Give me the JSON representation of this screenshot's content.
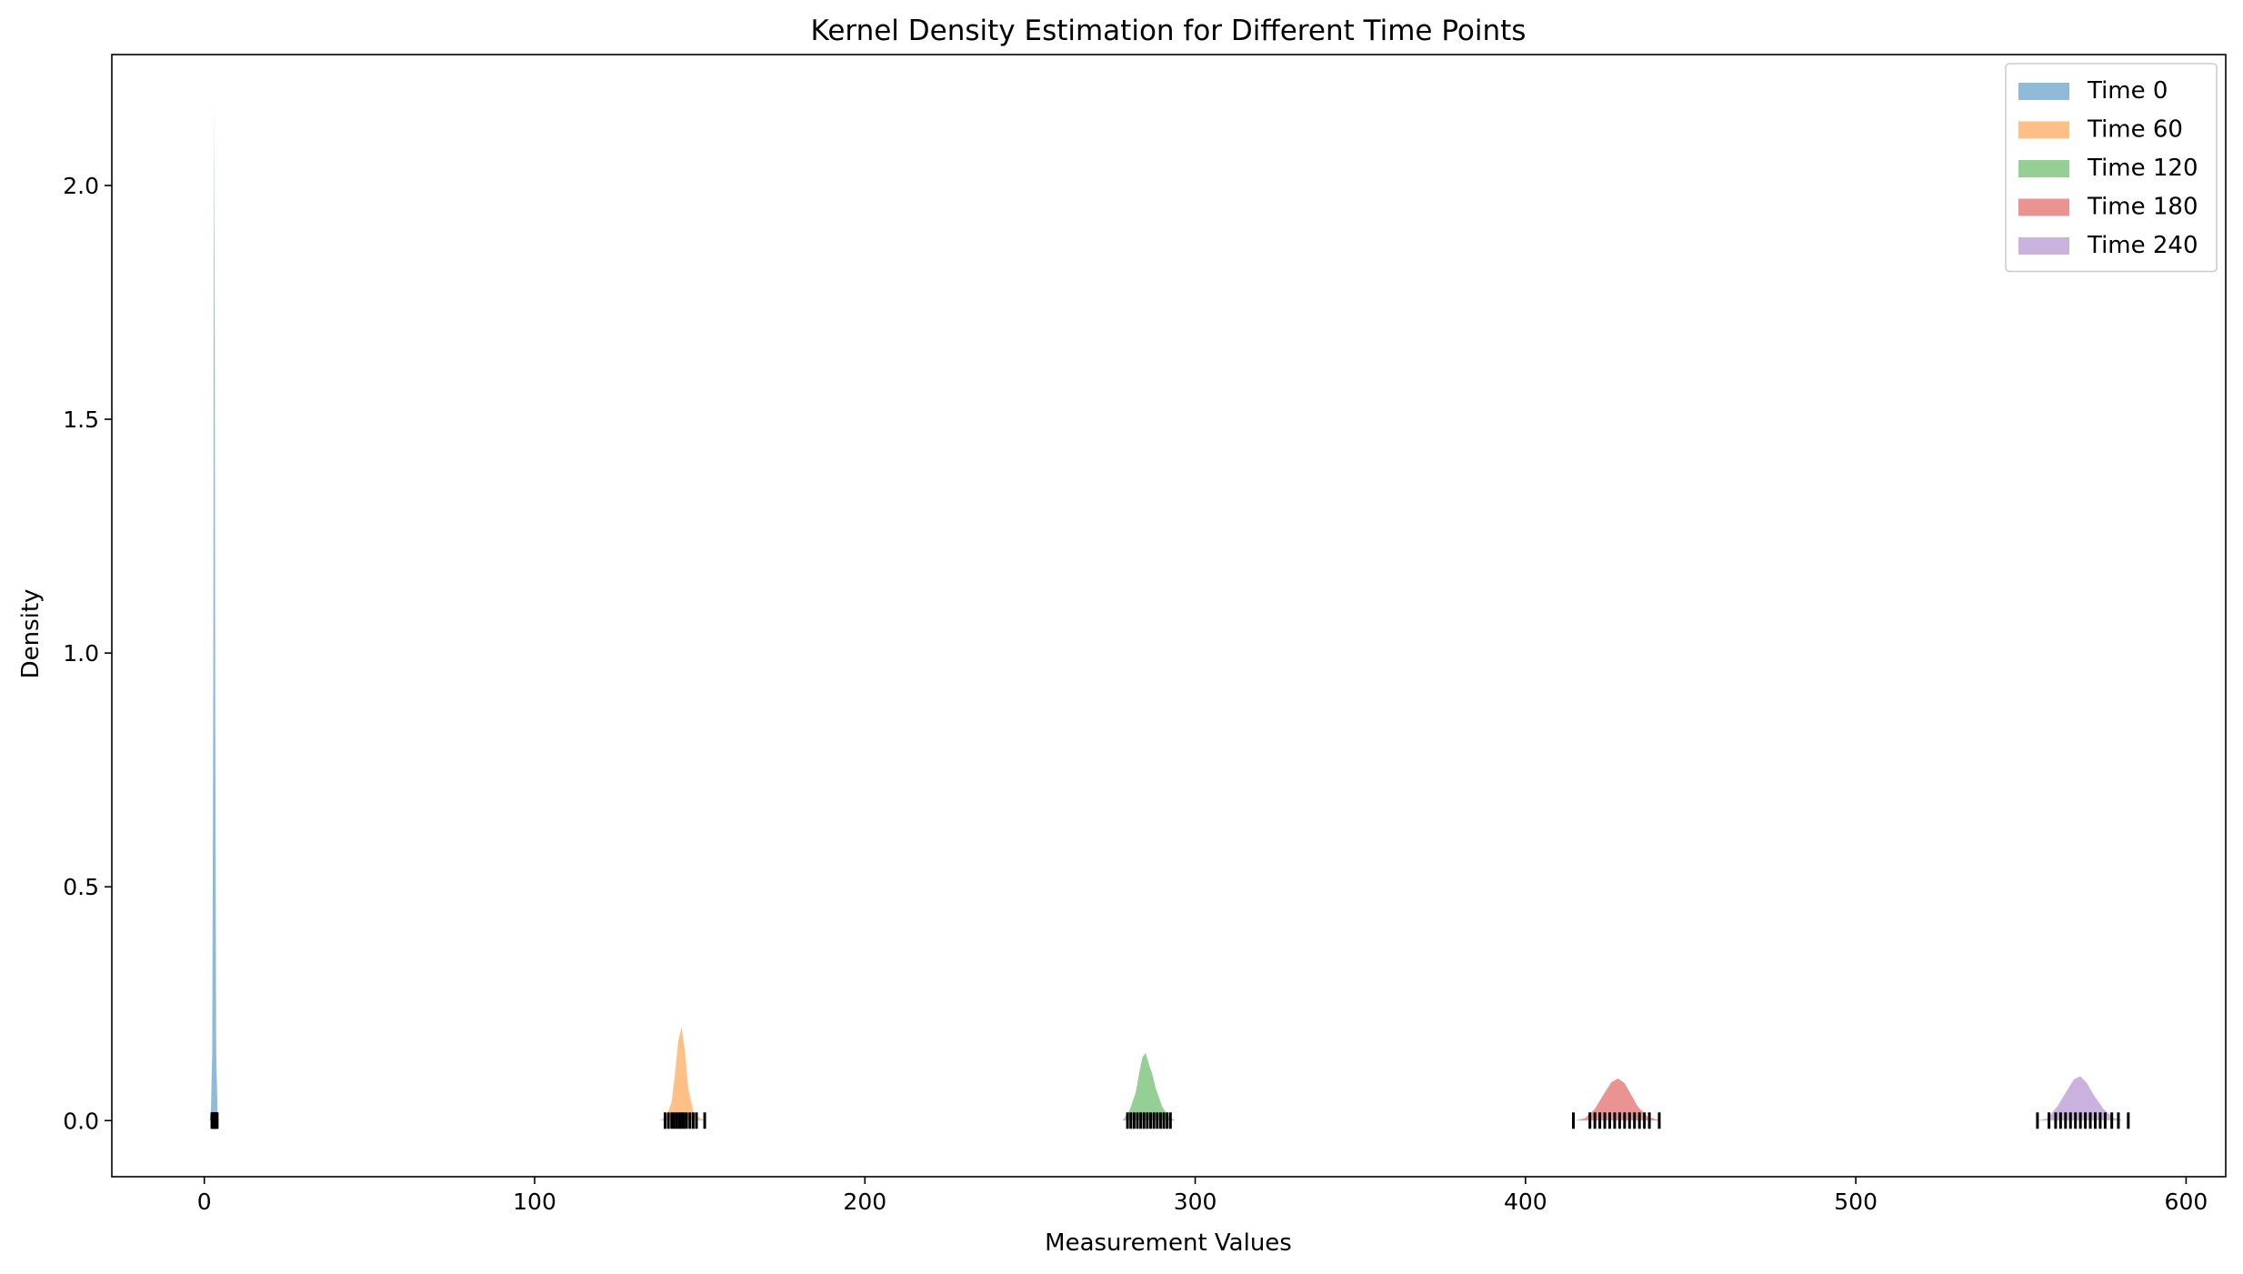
{
  "chart_data": {
    "type": "area",
    "title": "Kernel Density Estimation for Different Time Points",
    "xlabel": "Measurement Values",
    "ylabel": "Density",
    "xlim": [
      -28,
      612
    ],
    "ylim": [
      -0.12,
      2.28
    ],
    "xticks": [
      0,
      100,
      200,
      300,
      400,
      500,
      600
    ],
    "yticks": [
      0.0,
      0.5,
      1.0,
      1.5,
      2.0
    ],
    "xtick_labels": [
      "0",
      "100",
      "200",
      "300",
      "400",
      "500",
      "600"
    ],
    "ytick_labels": [
      "0.0",
      "0.5",
      "1.0",
      "1.5",
      "2.0"
    ],
    "grid": false,
    "legend_position": "top-right",
    "series": [
      {
        "name": "Time 0",
        "color": "#1f77b4",
        "opacity": 0.5,
        "x": [
          1.6,
          2.0,
          2.4,
          2.7,
          2.85,
          3.0,
          3.15,
          3.3,
          3.6,
          4.0,
          4.4
        ],
        "y": [
          0.0,
          0.02,
          0.15,
          0.9,
          1.7,
          2.18,
          1.7,
          0.9,
          0.15,
          0.02,
          0.0
        ],
        "rug": [
          2.3,
          2.5,
          2.7,
          2.9,
          3.0,
          3.1,
          3.3,
          3.5,
          3.7,
          3.9
        ]
      },
      {
        "name": "Time 60",
        "color": "#ff7f0e",
        "opacity": 0.5,
        "x": [
          138,
          140,
          141.5,
          142.5,
          143.5,
          144.5,
          145.5,
          146.5,
          148,
          150,
          152
        ],
        "y": [
          0.0,
          0.01,
          0.04,
          0.1,
          0.17,
          0.2,
          0.15,
          0.07,
          0.02,
          0.005,
          0.0
        ],
        "rug": [
          139.5,
          140.5,
          141.5,
          142.2,
          143.0,
          143.8,
          144.5,
          145.2,
          146.0,
          147.0,
          148.0,
          149.0,
          151.5
        ]
      },
      {
        "name": "Time 120",
        "color": "#2ca02c",
        "opacity": 0.5,
        "x": [
          278,
          280,
          282,
          283,
          284,
          285,
          286,
          287,
          288,
          290,
          292,
          294
        ],
        "y": [
          0.0,
          0.02,
          0.06,
          0.1,
          0.135,
          0.145,
          0.12,
          0.1,
          0.07,
          0.03,
          0.008,
          0.0
        ],
        "rug": [
          279.5,
          280.5,
          281.5,
          282.5,
          283.5,
          284.5,
          285.5,
          286.5,
          287.5,
          288.5,
          289.5,
          290.5,
          291.5,
          292.5
        ]
      },
      {
        "name": "Time 180",
        "color": "#d62728",
        "opacity": 0.5,
        "x": [
          415,
          418,
          421,
          424,
          426,
          428,
          430,
          432,
          434,
          437,
          441
        ],
        "y": [
          0.0,
          0.005,
          0.025,
          0.06,
          0.082,
          0.09,
          0.08,
          0.055,
          0.03,
          0.008,
          0.0
        ],
        "rug": [
          414.5,
          419.5,
          421.0,
          422.5,
          424.0,
          425.5,
          427.0,
          428.5,
          430.0,
          431.5,
          433.0,
          434.5,
          436.0,
          437.5,
          440.5
        ]
      },
      {
        "name": "Time 240",
        "color": "#9467bd",
        "opacity": 0.5,
        "x": [
          555,
          558,
          561,
          564,
          566,
          568,
          570,
          572,
          575,
          578,
          581
        ],
        "y": [
          0.0,
          0.005,
          0.03,
          0.065,
          0.088,
          0.095,
          0.08,
          0.055,
          0.025,
          0.006,
          0.0
        ],
        "rug": [
          555.0,
          558.5,
          560.5,
          562.0,
          563.5,
          565.0,
          566.5,
          568.0,
          569.5,
          571.0,
          572.5,
          574.0,
          575.5,
          577.5,
          579.5,
          582.5
        ]
      }
    ]
  }
}
